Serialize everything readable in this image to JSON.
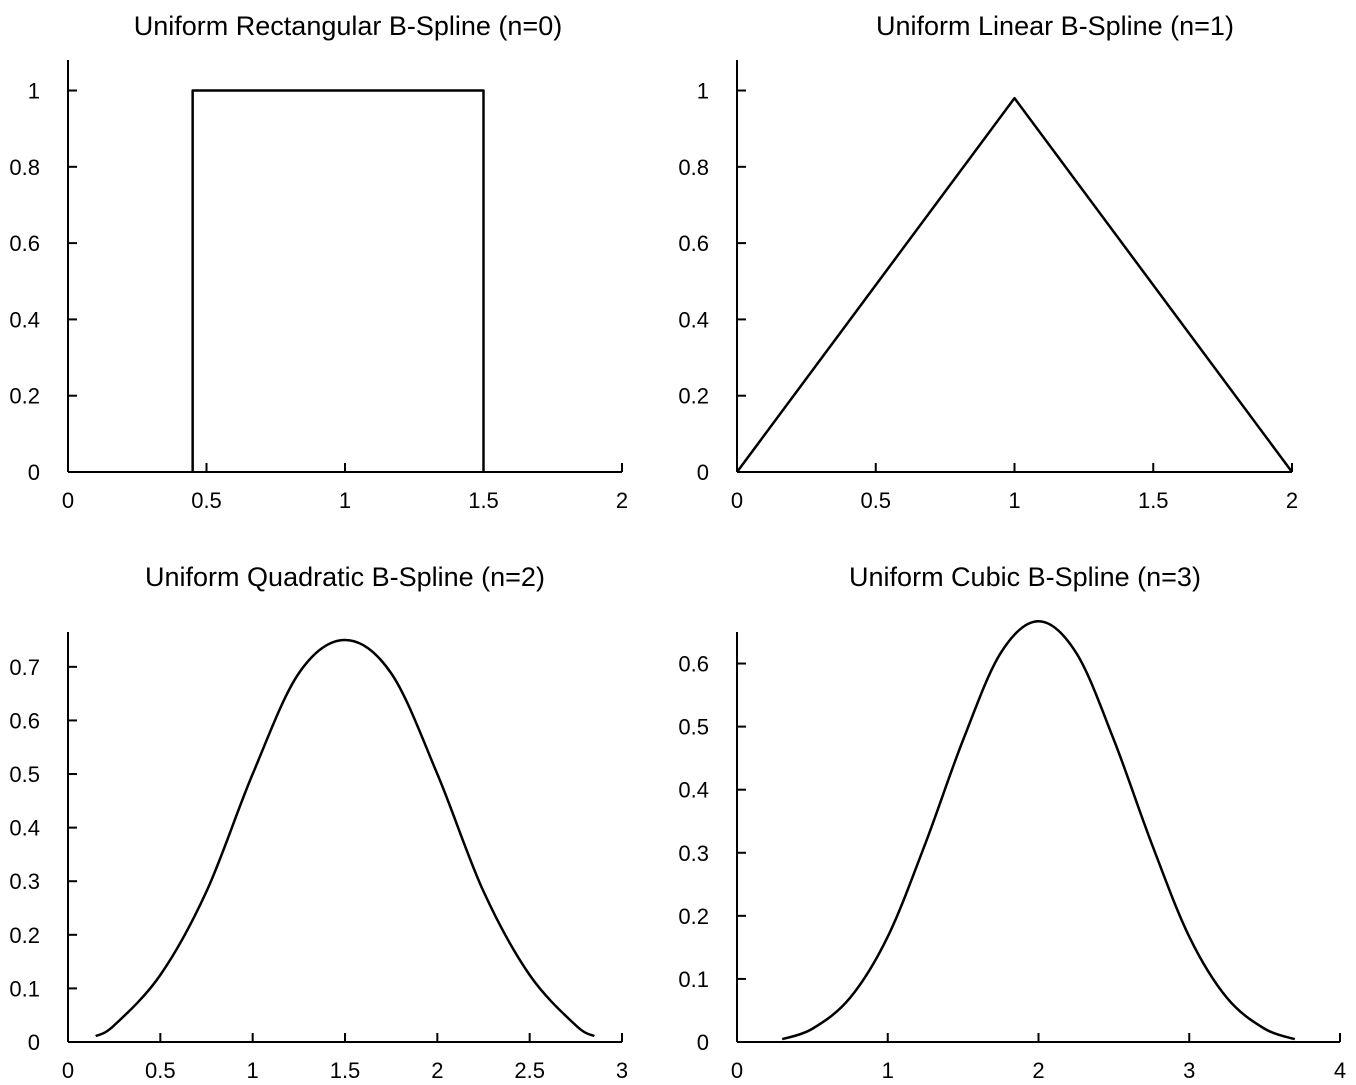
{
  "chart_data": [
    {
      "type": "line",
      "title": "Uniform Rectangular B-Spline (n=0)",
      "xlabel": "",
      "ylabel": "",
      "xlim": [
        0,
        2
      ],
      "ylim": [
        0,
        1.08
      ],
      "xticks": [
        0,
        0.5,
        1,
        1.5,
        2
      ],
      "xtick_labels": [
        "0",
        "0.5",
        "1",
        "1.5",
        "2"
      ],
      "yticks": [
        0,
        0.2,
        0.4,
        0.6,
        0.8,
        1
      ],
      "ytick_labels": [
        "0",
        "0.2",
        "0.4",
        "0.6",
        "0.8",
        "1"
      ],
      "grid": false,
      "line_color": "#000000",
      "series": [
        {
          "x": [
            0.45,
            0.45,
            1.5,
            1.5
          ],
          "y": [
            0,
            1,
            1,
            0
          ]
        }
      ]
    },
    {
      "type": "line",
      "title": "Uniform Linear B-Spline (n=1)",
      "xlabel": "",
      "ylabel": "",
      "xlim": [
        0,
        2
      ],
      "ylim": [
        0,
        1.08
      ],
      "xticks": [
        0,
        0.5,
        1,
        1.5,
        2
      ],
      "xtick_labels": [
        "0",
        "0.5",
        "1",
        "1.5",
        "2"
      ],
      "yticks": [
        0,
        0.2,
        0.4,
        0.6,
        0.8,
        1
      ],
      "ytick_labels": [
        "0",
        "0.2",
        "0.4",
        "0.6",
        "0.8",
        "1"
      ],
      "grid": false,
      "line_color": "#000000",
      "series": [
        {
          "x": [
            0,
            1,
            2
          ],
          "y": [
            0,
            0.98,
            0
          ]
        }
      ]
    },
    {
      "type": "line",
      "title": "Uniform Quadratic B-Spline (n=2)",
      "xlabel": "",
      "ylabel": "",
      "xlim": [
        0,
        3
      ],
      "ylim": [
        0,
        0.765
      ],
      "xticks": [
        0,
        0.5,
        1,
        1.5,
        2,
        2.5,
        3
      ],
      "xtick_labels": [
        "0",
        "0.5",
        "1",
        "1.5",
        "2",
        "2.5",
        "3"
      ],
      "yticks": [
        0,
        0.1,
        0.2,
        0.3,
        0.4,
        0.5,
        0.6,
        0.7
      ],
      "ytick_labels": [
        "0",
        "0.1",
        "0.2",
        "0.3",
        "0.4",
        "0.5",
        "0.6",
        "0.7"
      ],
      "grid": false,
      "line_color": "#000000",
      "series": [
        {
          "x": [
            0.15,
            0.25,
            0.5,
            0.75,
            1.0,
            1.25,
            1.5,
            1.75,
            2.0,
            2.25,
            2.5,
            2.75,
            2.85
          ],
          "y": [
            0.011,
            0.031,
            0.125,
            0.281,
            0.5,
            0.688,
            0.75,
            0.688,
            0.5,
            0.281,
            0.125,
            0.031,
            0.011
          ]
        }
      ]
    },
    {
      "type": "line",
      "title": "Uniform Cubic B-Spline (n=3)",
      "xlabel": "",
      "ylabel": "",
      "xlim": [
        0,
        4
      ],
      "ylim": [
        0,
        0.65
      ],
      "xticks": [
        0,
        1,
        2,
        3,
        4
      ],
      "xtick_labels": [
        "0",
        "1",
        "2",
        "3",
        "4"
      ],
      "yticks": [
        0,
        0.1,
        0.2,
        0.3,
        0.4,
        0.5,
        0.6
      ],
      "ytick_labels": [
        "0",
        "0.1",
        "0.2",
        "0.3",
        "0.4",
        "0.5",
        "0.6"
      ],
      "grid": false,
      "line_color": "#000000",
      "series": [
        {
          "x": [
            0.3,
            0.5,
            0.75,
            1.0,
            1.25,
            1.5,
            1.75,
            2.0,
            2.25,
            2.5,
            2.75,
            3.0,
            3.25,
            3.5,
            3.7
          ],
          "y": [
            0.0045,
            0.021,
            0.07,
            0.167,
            0.315,
            0.479,
            0.617,
            0.667,
            0.617,
            0.479,
            0.315,
            0.167,
            0.07,
            0.021,
            0.0045
          ]
        }
      ]
    }
  ]
}
